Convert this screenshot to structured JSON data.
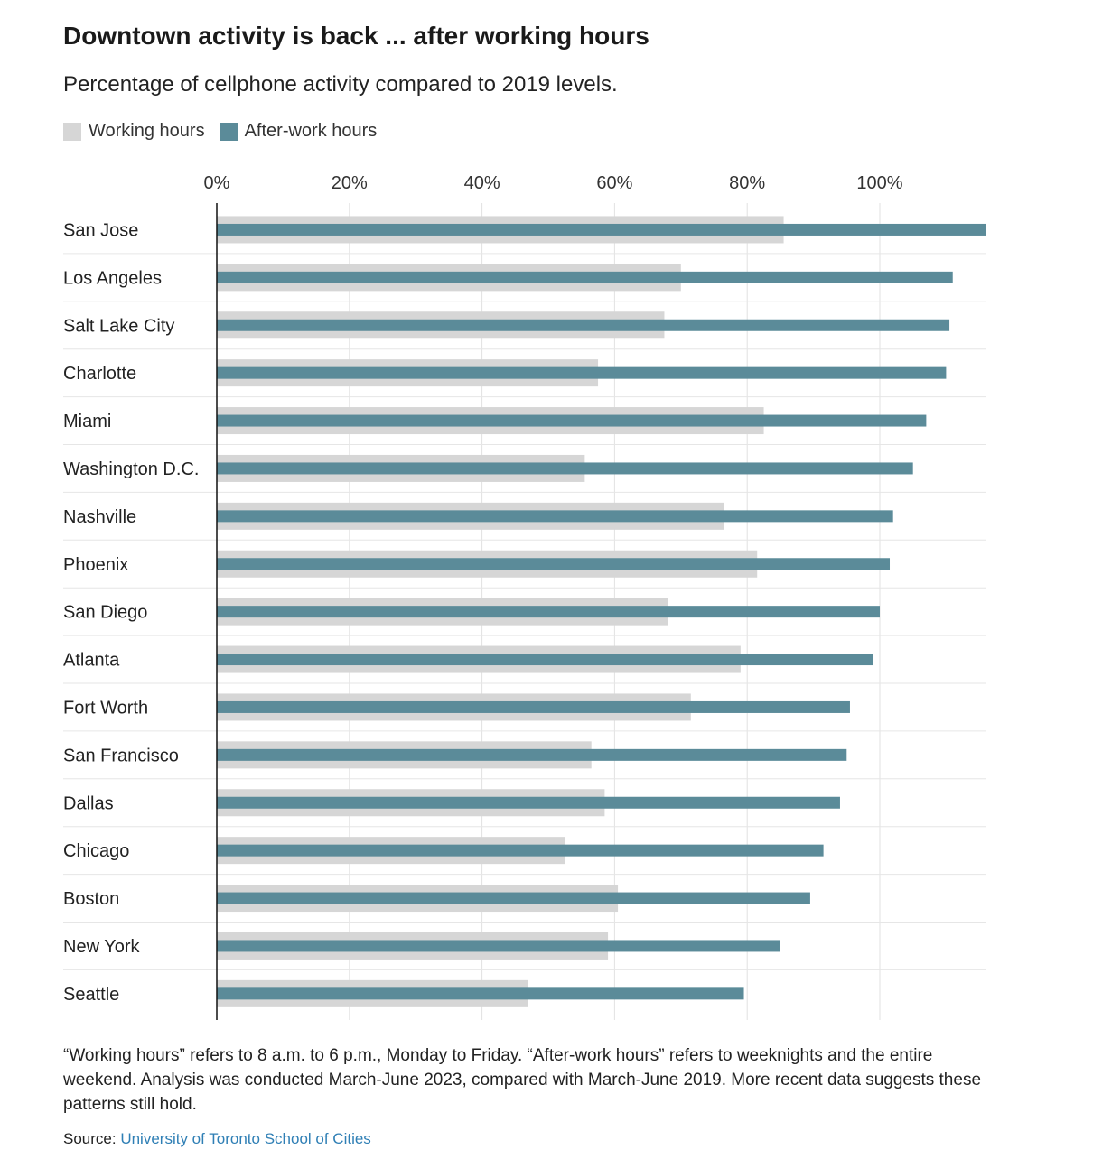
{
  "chart_data": {
    "type": "bar",
    "orientation": "horizontal",
    "title": "Downtown activity is back ... after working hours",
    "subtitle": "Percentage of cellphone activity compared to 2019 levels.",
    "categories": [
      "San Jose",
      "Los Angeles",
      "Salt Lake City",
      "Charlotte",
      "Miami",
      "Washington D.C.",
      "Nashville",
      "Phoenix",
      "San Diego",
      "Atlanta",
      "Fort Worth",
      "San Francisco",
      "Dallas",
      "Chicago",
      "Boston",
      "New York",
      "Seattle"
    ],
    "series": [
      {
        "name": "Working hours",
        "color": "#d6d6d6",
        "values": [
          85.5,
          70,
          67.5,
          57.5,
          82.5,
          55.5,
          76.5,
          81.5,
          68,
          79,
          71.5,
          56.5,
          58.5,
          52.5,
          60.5,
          59,
          47
        ]
      },
      {
        "name": "After-work hours",
        "color": "#5b8b99",
        "values": [
          116,
          111,
          110.5,
          110,
          107,
          105,
          102,
          101.5,
          100,
          99,
          95.5,
          95,
          94,
          91.5,
          89.5,
          85,
          79.5
        ]
      }
    ],
    "xticks": [
      0,
      20,
      40,
      60,
      80,
      100
    ],
    "xtick_labels": [
      "0%",
      "20%",
      "40%",
      "60%",
      "80%",
      "100%"
    ],
    "xlim": [
      0,
      116
    ],
    "xlabel": "",
    "ylabel": "",
    "grid": true,
    "legend_position": "top-left"
  },
  "note": "“Working hours” refers to 8 a.m. to 6 p.m., Monday to Friday. “After-work hours” refers to weeknights and the entire weekend. Analysis was conducted March-June 2023, compared with March-June 2019. More recent data suggests these patterns still hold.",
  "source_label": "Source:",
  "source_link": "University of Toronto School of Cities"
}
